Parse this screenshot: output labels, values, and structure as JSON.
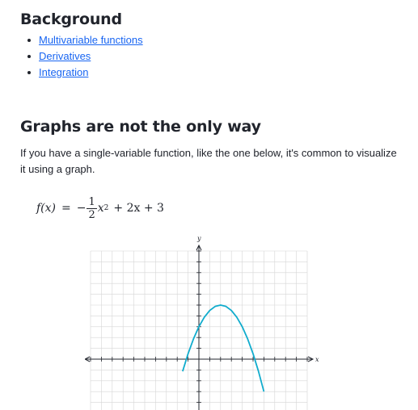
{
  "sections": {
    "background": {
      "heading": "Background",
      "links": [
        "Multivariable functions",
        "Derivatives",
        "Integration"
      ]
    },
    "graphs": {
      "heading": "Graphs are not the only way",
      "intro": "If you have a single-variable function, like the one below, it's common to visualize it using a graph.",
      "formula": {
        "lhs": "f(x)",
        "eq": "=",
        "sign": "−",
        "frac_num": "1",
        "frac_den": "2",
        "var": "x",
        "power": "2",
        "rest": "+ 2x + 3"
      }
    }
  },
  "chart_data": {
    "type": "line",
    "function": "f(x) = -1/2 x^2 + 2x + 3",
    "xlabel": "x",
    "ylabel": "y",
    "grid": true,
    "series": [
      {
        "color": "#11accd",
        "x": [
          -1.5,
          -1,
          -0.5,
          0,
          0.5,
          1,
          1.5,
          2,
          2.5,
          3,
          3.5,
          4,
          4.5,
          5,
          5.5,
          6
        ],
        "y": [
          -1.125,
          0.5,
          1.875,
          3,
          3.875,
          4.5,
          4.875,
          5,
          4.875,
          4.5,
          3.875,
          3,
          1.875,
          0.5,
          -1.125,
          -3
        ]
      }
    ]
  }
}
